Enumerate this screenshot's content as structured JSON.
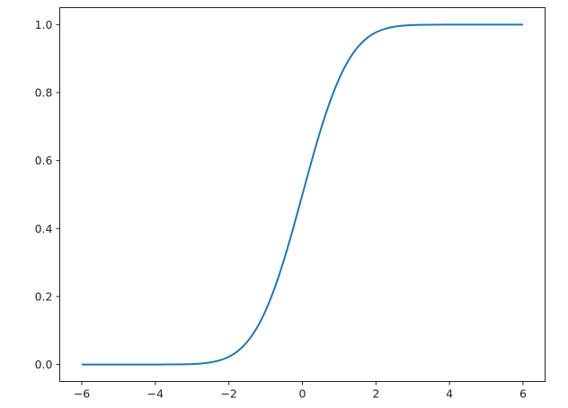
{
  "chart_data": {
    "type": "line",
    "title": "",
    "xlabel": "",
    "ylabel": "",
    "xlim": [
      -6.6,
      6.6
    ],
    "ylim": [
      -0.05,
      1.05
    ],
    "grid": false,
    "x_ticks": [
      -6,
      -4,
      -2,
      0,
      2,
      4,
      6
    ],
    "x_tick_labels": [
      "−6",
      "−4",
      "−2",
      "0",
      "2",
      "4",
      "6"
    ],
    "y_ticks": [
      0.0,
      0.2,
      0.4,
      0.6,
      0.8,
      1.0
    ],
    "y_tick_labels": [
      "0.0",
      "0.2",
      "0.4",
      "0.6",
      "0.8",
      "1.0"
    ],
    "series": [
      {
        "color": "#1f77b4",
        "x": [
          -6,
          -5.75,
          -5.5,
          -5.25,
          -5,
          -4.75,
          -4.5,
          -4.25,
          -4,
          -3.75,
          -3.5,
          -3.25,
          -3,
          -2.75,
          -2.5,
          -2.25,
          -2,
          -1.75,
          -1.5,
          -1.25,
          -1,
          -0.75,
          -0.5,
          -0.25,
          0,
          0.25,
          0.5,
          0.75,
          1,
          1.25,
          1.5,
          1.75,
          2,
          2.25,
          2.5,
          2.75,
          3,
          3.25,
          3.5,
          3.75,
          4,
          4.25,
          4.5,
          4.75,
          5,
          5.25,
          5.5,
          5.75,
          6
        ],
        "y": [
          0,
          0,
          0,
          0,
          0,
          0,
          0,
          0,
          0,
          0.0001,
          0.0002,
          0.0006,
          0.0013,
          0.003,
          0.0062,
          0.0122,
          0.0228,
          0.0401,
          0.0668,
          0.1056,
          0.1587,
          0.2266,
          0.3085,
          0.4013,
          0.5,
          0.5987,
          0.6915,
          0.7734,
          0.8413,
          0.8944,
          0.9332,
          0.9599,
          0.9772,
          0.9878,
          0.9938,
          0.997,
          0.9987,
          0.9994,
          0.9998,
          0.9999,
          1,
          1,
          1,
          1,
          1,
          1,
          1,
          1,
          1
        ]
      }
    ]
  }
}
